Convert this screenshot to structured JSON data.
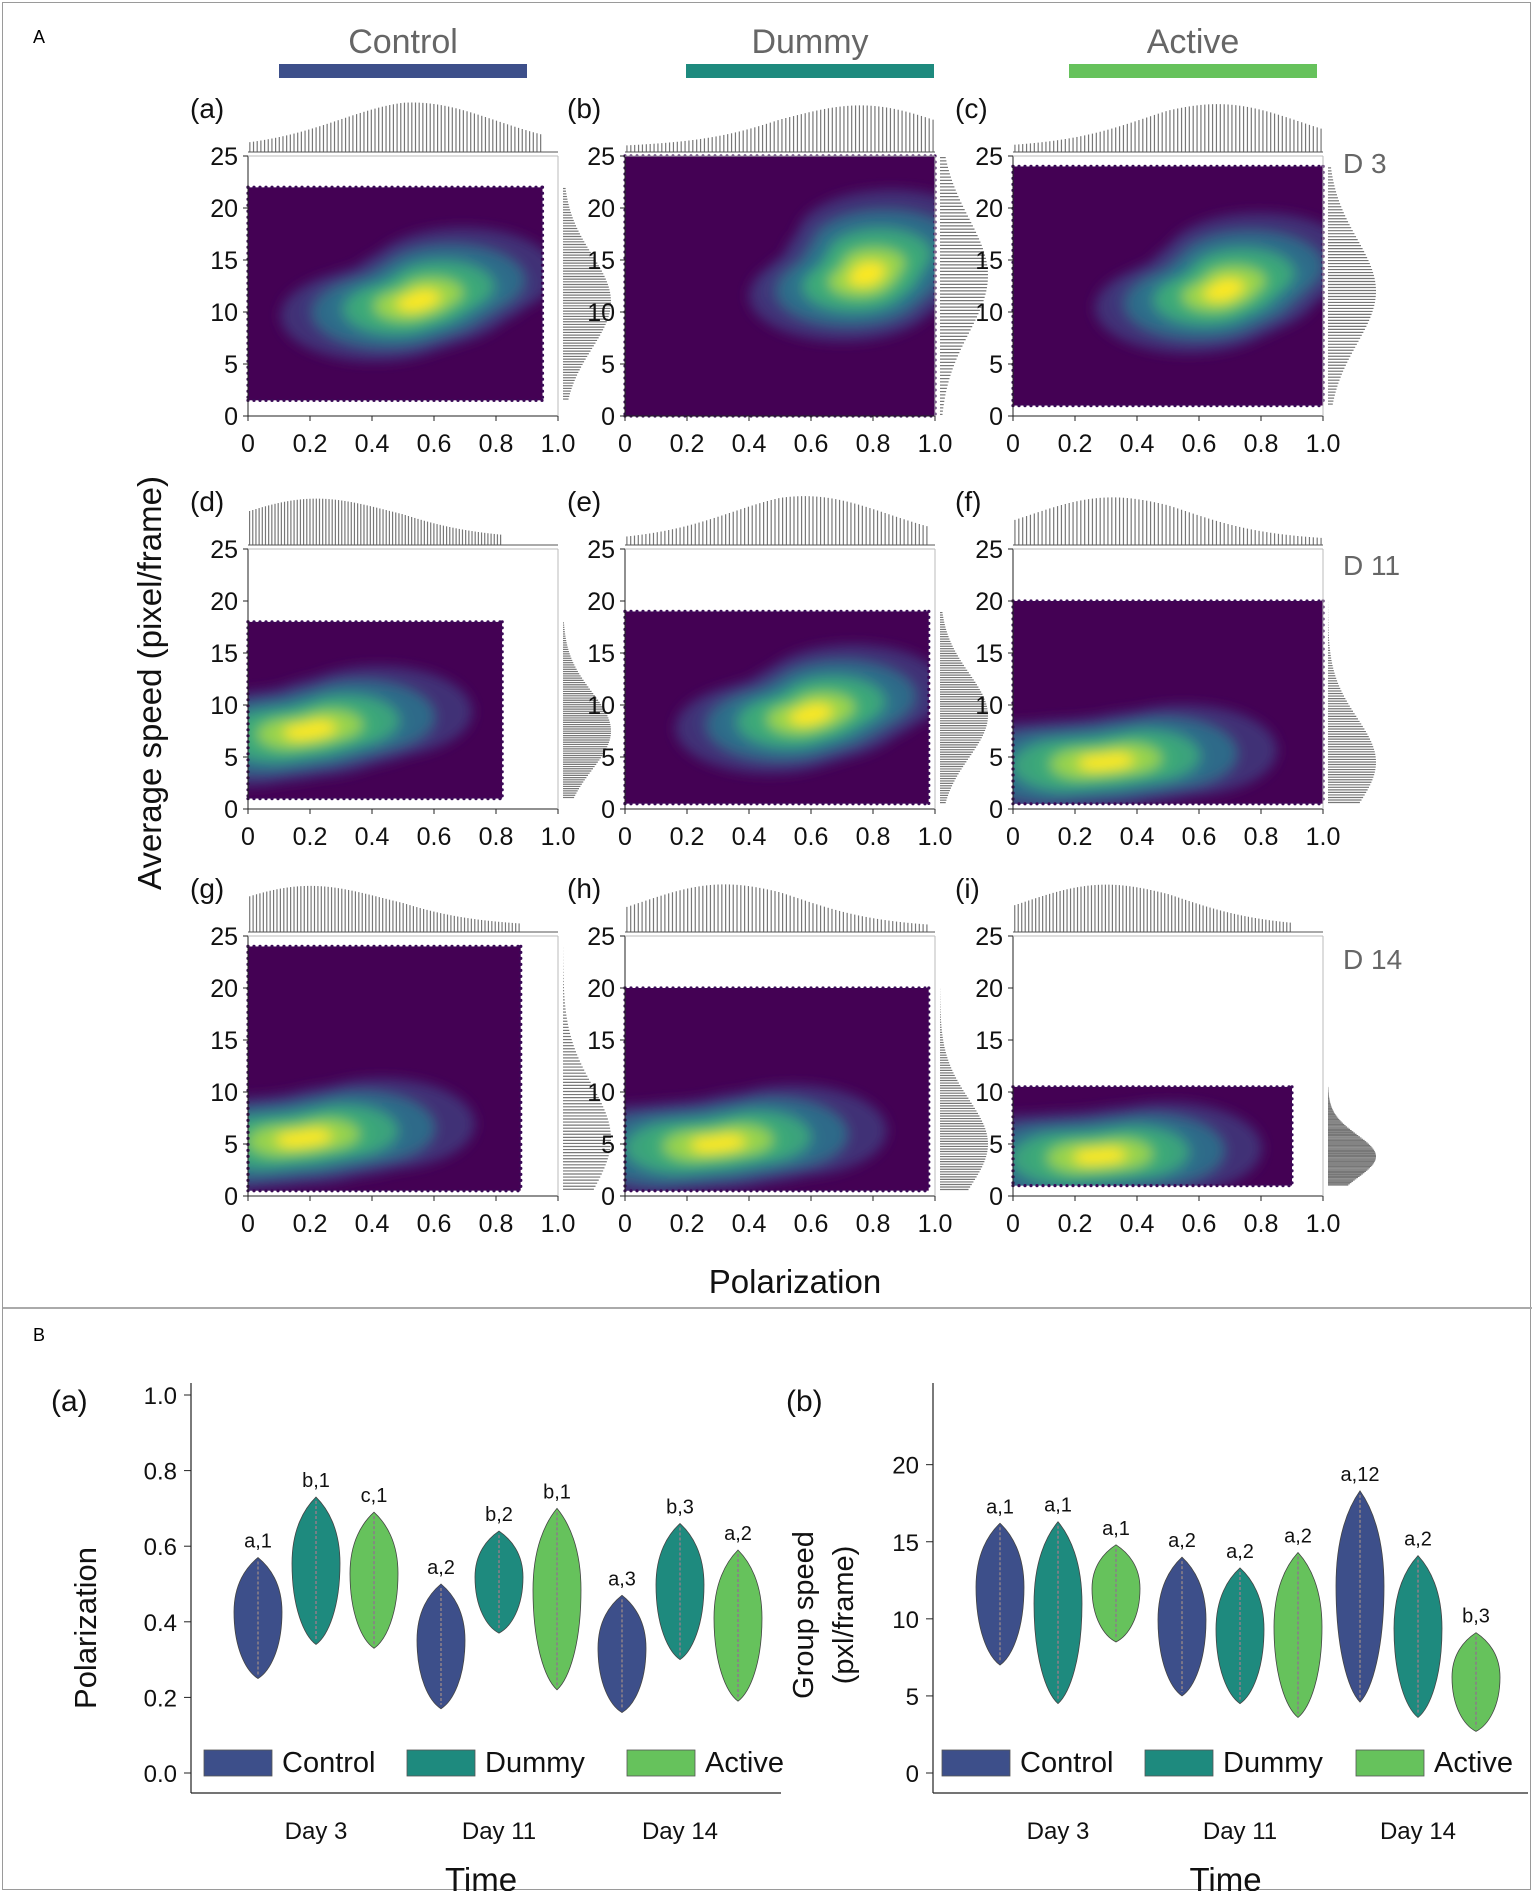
{
  "panel_labels": {
    "a": "A",
    "b": "B"
  },
  "groups": [
    {
      "name": "Control",
      "color": "#3d4f8a"
    },
    {
      "name": "Dummy",
      "color": "#1e8a7e"
    },
    {
      "name": "Active",
      "color": "#66c25c"
    }
  ],
  "day_labels": [
    "D 3",
    "D 11",
    "D 14"
  ],
  "panel_a": {
    "ylabel": "Average speed (pixel/frame)",
    "xlabel": "Polarization",
    "yticks": [
      "0",
      "5",
      "10",
      "15",
      "20",
      "25"
    ],
    "xticks": [
      "0",
      "0.2",
      "0.4",
      "0.6",
      "0.8",
      "1.0"
    ]
  },
  "panel_b": {
    "xlabel": "Time",
    "days": [
      "Day 3",
      "Day 11",
      "Day 14"
    ],
    "legend": [
      "Control",
      "Dummy",
      "Active"
    ]
  },
  "chart_data": [
    {
      "type": "heatmap",
      "description_kind": "hexbin joint plot grid (rows: days, columns: groups) with marginal histograms",
      "xlabel": "Polarization",
      "ylabel": "Average speed (pixel/frame)",
      "xlim": [
        0,
        1.0
      ],
      "ylim": [
        0,
        25
      ],
      "panels": [
        {
          "label": "(a)",
          "group": "Control",
          "day": "D 3",
          "x_extent": [
            0,
            0.95
          ],
          "y_extent": [
            1.5,
            22
          ],
          "peak": [
            0.55,
            11
          ]
        },
        {
          "label": "(b)",
          "group": "Dummy",
          "day": "D 3",
          "x_extent": [
            0,
            1.0
          ],
          "y_extent": [
            0,
            25
          ],
          "peak": [
            0.78,
            13.5
          ]
        },
        {
          "label": "(c)",
          "group": "Active",
          "day": "D 3",
          "x_extent": [
            0,
            1.0
          ],
          "y_extent": [
            1,
            24
          ],
          "peak": [
            0.68,
            12
          ]
        },
        {
          "label": "(d)",
          "group": "Control",
          "day": "D 11",
          "x_extent": [
            0,
            0.82
          ],
          "y_extent": [
            1,
            18
          ],
          "peak": [
            0.2,
            7.5
          ]
        },
        {
          "label": "(e)",
          "group": "Dummy",
          "day": "D 11",
          "x_extent": [
            0,
            0.98
          ],
          "y_extent": [
            0.5,
            19
          ],
          "peak": [
            0.6,
            9
          ]
        },
        {
          "label": "(f)",
          "group": "Active",
          "day": "D 11",
          "x_extent": [
            0,
            1.0
          ],
          "y_extent": [
            0.5,
            20
          ],
          "peak": [
            0.3,
            4.5
          ]
        },
        {
          "label": "(g)",
          "group": "Control",
          "day": "D 14",
          "x_extent": [
            0,
            0.88
          ],
          "y_extent": [
            0.5,
            24
          ],
          "peak": [
            0.18,
            5.5
          ]
        },
        {
          "label": "(h)",
          "group": "Dummy",
          "day": "D 14",
          "x_extent": [
            0,
            0.98
          ],
          "y_extent": [
            0.5,
            20
          ],
          "peak": [
            0.3,
            5
          ]
        },
        {
          "label": "(i)",
          "group": "Active",
          "day": "D 14",
          "x_extent": [
            0,
            0.9
          ],
          "y_extent": [
            1,
            10.5
          ],
          "peak": [
            0.28,
            3.8
          ]
        }
      ]
    },
    {
      "type": "violin",
      "label": "(a)",
      "xlabel": "Time",
      "ylabel": "Polarization",
      "ylim": [
        0,
        1.0
      ],
      "yticks": [
        "0.0",
        "0.2",
        "0.4",
        "0.6",
        "0.8",
        "1.0"
      ],
      "categories": [
        "Day 3",
        "Day 11",
        "Day 14"
      ],
      "series": [
        {
          "name": "Control",
          "ranges": [
            [
              0.25,
              0.57
            ],
            [
              0.17,
              0.5
            ],
            [
              0.16,
              0.47
            ]
          ],
          "letters": [
            "a,1",
            "a,2",
            "a,3"
          ]
        },
        {
          "name": "Dummy",
          "ranges": [
            [
              0.34,
              0.73
            ],
            [
              0.37,
              0.64
            ],
            [
              0.3,
              0.66
            ]
          ],
          "letters": [
            "b,1",
            "b,2",
            "b,3"
          ]
        },
        {
          "name": "Active",
          "ranges": [
            [
              0.33,
              0.69
            ],
            [
              0.22,
              0.7
            ],
            [
              0.19,
              0.59
            ]
          ],
          "letters": [
            "c,1",
            "b,1",
            "a,2"
          ]
        }
      ]
    },
    {
      "type": "violin",
      "label": "(b)",
      "xlabel": "Time",
      "ylabel": "Group speed (pxl/frame)",
      "ylim": [
        0,
        24
      ],
      "yticks": [
        "0",
        "5",
        "10",
        "15",
        "20"
      ],
      "categories": [
        "Day 3",
        "Day 11",
        "Day 14"
      ],
      "series": [
        {
          "name": "Control",
          "ranges": [
            [
              7,
              16.2
            ],
            [
              5,
              14
            ],
            [
              4.6,
              18.3
            ]
          ],
          "letters": [
            "a,1",
            "a,2",
            "a,12"
          ]
        },
        {
          "name": "Dummy",
          "ranges": [
            [
              4.5,
              16.3
            ],
            [
              4.5,
              13.3
            ],
            [
              3.6,
              14.1
            ]
          ],
          "letters": [
            "a,1",
            "a,2",
            "a,2"
          ]
        },
        {
          "name": "Active",
          "ranges": [
            [
              8.5,
              14.8
            ],
            [
              3.6,
              14.3
            ],
            [
              2.7,
              9.1
            ]
          ],
          "letters": [
            "a,1",
            "a,2",
            "b,3"
          ]
        }
      ]
    }
  ]
}
